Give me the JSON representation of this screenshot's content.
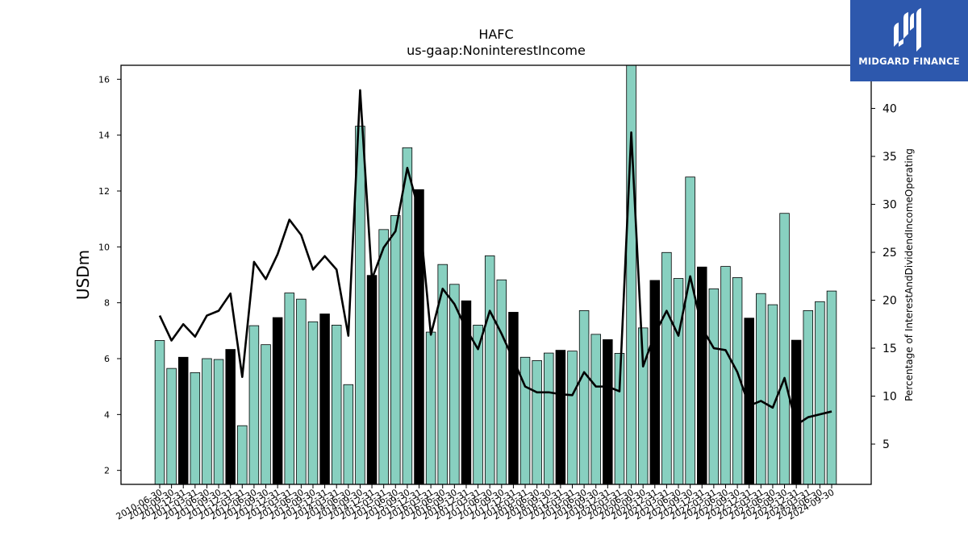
{
  "chart_data": {
    "type": "bar+line",
    "title": "HAFC",
    "subtitle": "us-gaap:NoninterestIncome",
    "ylabel": "USDm",
    "y2label": "Percentage of InterestAndDividendIncomeOperating",
    "ylim": [
      1.5,
      16.5
    ],
    "y2lim": [
      0.8,
      44.5
    ],
    "yticks": [
      2,
      4,
      6,
      8,
      10,
      12,
      14,
      16
    ],
    "y2ticks": [
      5,
      10,
      15,
      20,
      25,
      30,
      35,
      40
    ],
    "categories": [
      "2010-06-30",
      "2010-09-30",
      "2010-12-31",
      "2011-03-31",
      "2011-06-30",
      "2011-09-30",
      "2011-12-31",
      "2012-03-31",
      "2012-06-30",
      "2012-09-30",
      "2012-12-31",
      "2013-03-31",
      "2013-06-30",
      "2013-09-30",
      "2013-12-31",
      "2014-03-31",
      "2014-06-30",
      "2014-09-30",
      "2014-12-31",
      "2015-03-31",
      "2015-06-30",
      "2015-09-30",
      "2015-12-31",
      "2016-03-31",
      "2016-06-30",
      "2016-09-30",
      "2016-12-31",
      "2017-03-31",
      "2017-06-30",
      "2017-09-30",
      "2017-12-31",
      "2018-03-31",
      "2018-06-30",
      "2018-09-30",
      "2018-12-31",
      "2019-03-31",
      "2019-06-30",
      "2019-09-30",
      "2019-12-31",
      "2020-03-31",
      "2020-06-30",
      "2020-09-30",
      "2020-12-31",
      "2021-03-31",
      "2021-06-30",
      "2021-09-30",
      "2021-12-31",
      "2022-03-31",
      "2022-06-30",
      "2022-09-30",
      "2022-12-31",
      "2023-03-31",
      "2023-06-30",
      "2023-09-30",
      "2023-12-31",
      "2024-03-31",
      "2024-06-30",
      "2024-09-30"
    ],
    "series": [
      {
        "kind": "bar",
        "values": [
          6.65,
          5.65,
          6.05,
          5.5,
          6.0,
          5.97,
          6.33,
          3.6,
          7.18,
          6.5,
          7.47,
          8.35,
          8.13,
          7.32,
          7.6,
          7.2,
          5.07,
          14.32,
          8.98,
          10.62,
          11.12,
          13.55,
          12.05,
          6.95,
          9.37,
          8.66,
          8.07,
          7.2,
          9.68,
          8.82,
          7.66,
          6.05,
          5.93,
          6.2,
          6.3,
          6.27,
          7.72,
          6.87,
          6.68,
          6.19,
          16.5,
          7.1,
          8.8,
          9.8,
          8.87,
          12.5,
          9.28,
          8.5,
          9.3,
          8.9,
          7.45,
          8.33,
          7.93,
          11.2,
          6.66,
          7.72,
          8.04,
          8.42
        ],
        "highlight_every": 4,
        "highlight_start": 2,
        "color": "#88d0c0",
        "highlight_color": "#000000"
      },
      {
        "kind": "line",
        "values": [
          18.4,
          15.8,
          17.5,
          16.2,
          18.4,
          18.9,
          20.7,
          12.0,
          24.0,
          22.2,
          24.8,
          28.4,
          26.8,
          23.2,
          24.6,
          23.2,
          16.3,
          41.9,
          22.2,
          25.5,
          27.2,
          33.8,
          29.3,
          16.4,
          21.2,
          19.6,
          17.0,
          14.9,
          18.9,
          16.5,
          13.8,
          11.0,
          10.4,
          10.4,
          10.2,
          10.1,
          12.5,
          11.0,
          11.0,
          10.5,
          37.5,
          13.1,
          16.5,
          18.9,
          16.3,
          22.5,
          17.1,
          15.0,
          14.8,
          12.5,
          9.0,
          9.5,
          8.8,
          11.9,
          7.0,
          7.8,
          8.1,
          8.4
        ],
        "color": "#000000"
      }
    ]
  },
  "logo": {
    "text": "MIDGARD FINANCE"
  }
}
